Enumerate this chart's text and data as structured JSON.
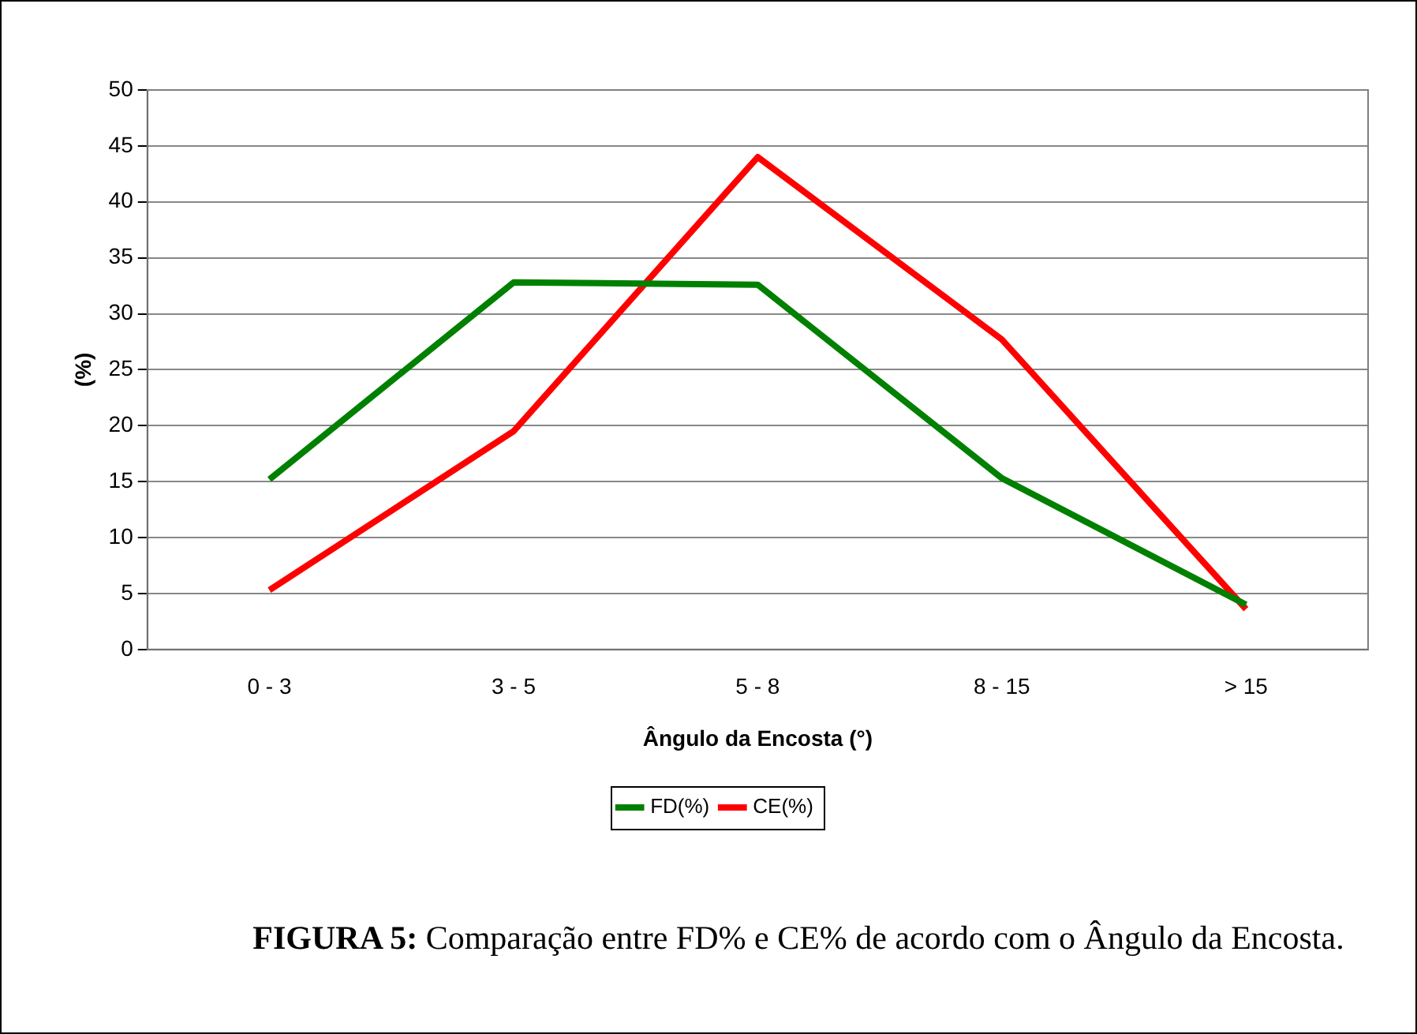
{
  "chart_data": {
    "type": "line",
    "title": "FIGURA 5: Comparação entre FD% e CE% de acordo com o Ângulo da Encosta.",
    "xlabel": "Ângulo da Encosta (°)",
    "ylabel": "(%)",
    "categories": [
      "0 - 3",
      "3 - 5",
      "5 - 8",
      "8 - 15",
      "> 15"
    ],
    "series": [
      {
        "name": "FD(%)",
        "color": "#008000",
        "values": [
          15.2,
          32.8,
          32.6,
          15.3,
          4.0
        ]
      },
      {
        "name": "CE(%)",
        "color": "#ff0000",
        "values": [
          5.3,
          19.5,
          44,
          27.7,
          3.6
        ]
      }
    ],
    "ylim": [
      0,
      50
    ],
    "yticks": [
      0,
      5,
      10,
      15,
      20,
      25,
      30,
      35,
      40,
      45,
      50
    ],
    "grid": "y",
    "legend": "bottom",
    "marker": "none",
    "line_style": "solid"
  }
}
